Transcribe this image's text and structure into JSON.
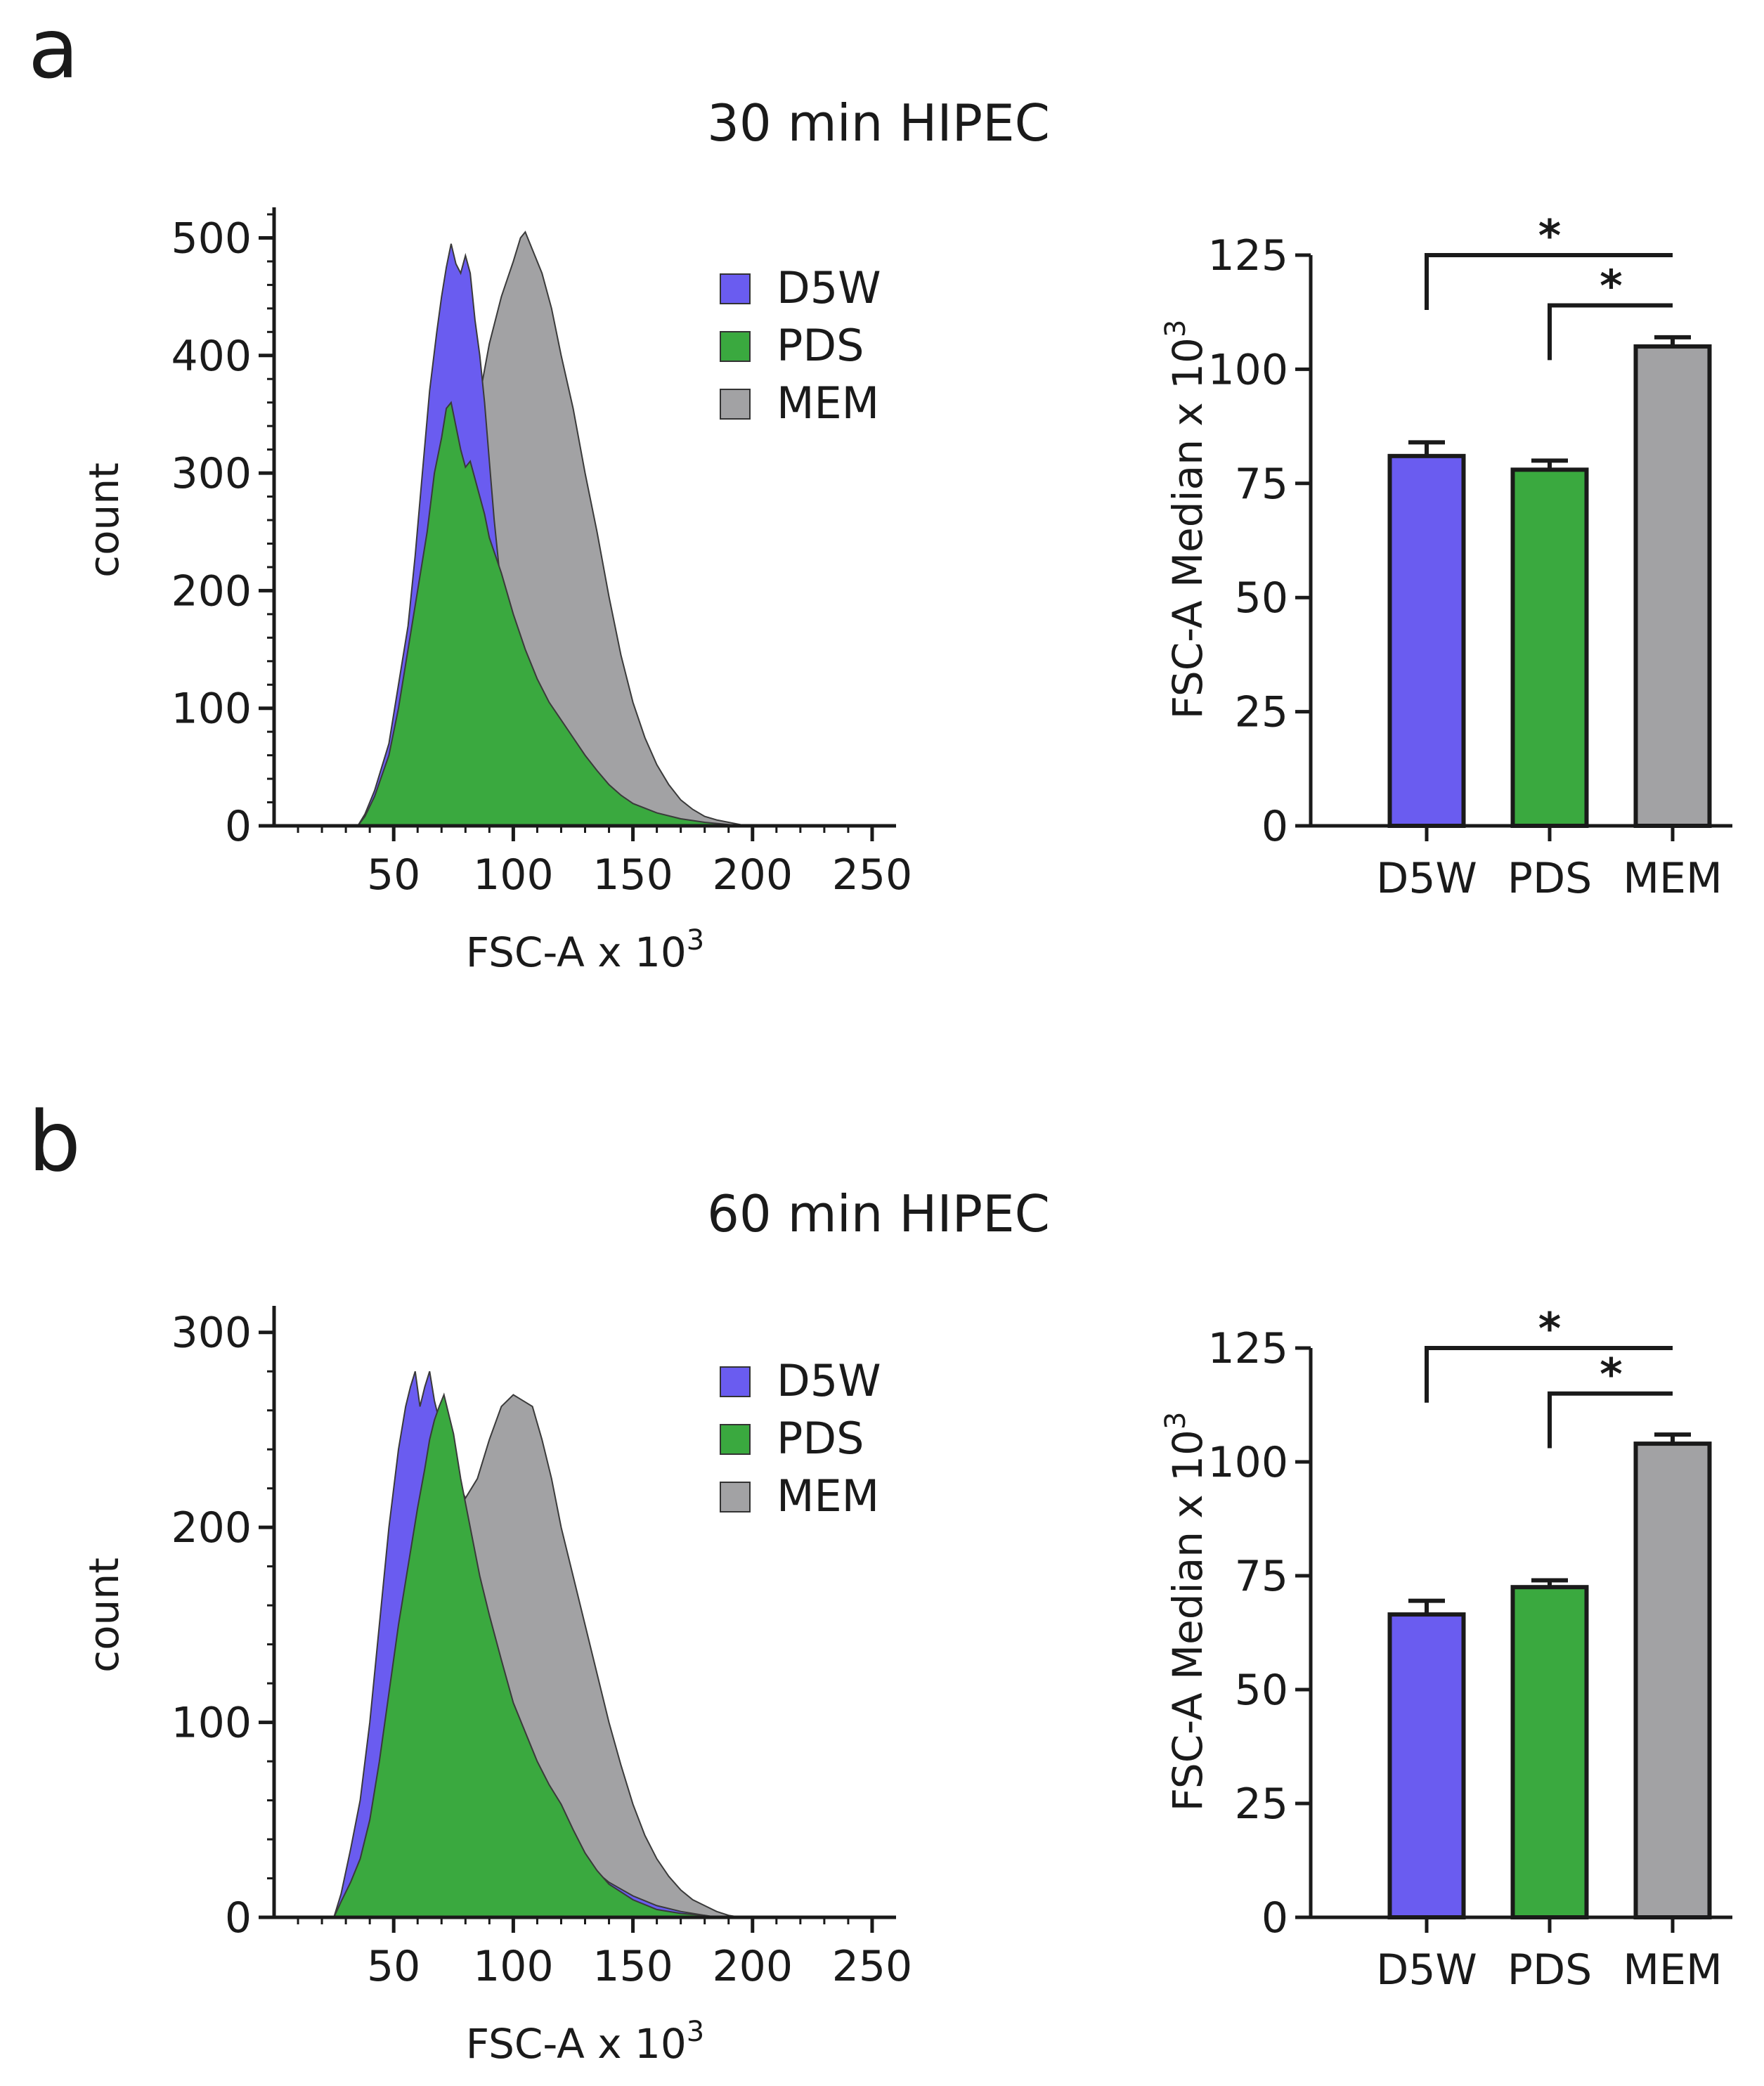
{
  "colors": {
    "D5W": "#6a5cf0",
    "PDS": "#3aa93f",
    "MEM": "#a2a2a4",
    "axis": "#1a1a1a"
  },
  "panels": [
    {
      "letter": "a",
      "title": "30 min HIPEC",
      "histogram": {
        "type": "area",
        "xlabel": "FSC-A x 10",
        "xlabel_sup": "3",
        "ylabel": "count",
        "xlim": [
          0,
          260
        ],
        "ylim": [
          0,
          520
        ],
        "xticks": [
          50,
          100,
          150,
          200,
          250
        ],
        "yticks": [
          0,
          100,
          200,
          300,
          400,
          500
        ],
        "legend": [
          "D5W",
          "PDS",
          "MEM"
        ],
        "series": [
          {
            "name": "MEM",
            "points": [
              [
                35,
                0
              ],
              [
                38,
                5
              ],
              [
                42,
                20
              ],
              [
                48,
                48
              ],
              [
                55,
                90
              ],
              [
                60,
                140
              ],
              [
                64,
                200
              ],
              [
                68,
                260
              ],
              [
                72,
                310
              ],
              [
                76,
                340
              ],
              [
                80,
                330
              ],
              [
                85,
                355
              ],
              [
                90,
                410
              ],
              [
                95,
                450
              ],
              [
                100,
                480
              ],
              [
                103,
                500
              ],
              [
                105,
                505
              ],
              [
                108,
                490
              ],
              [
                112,
                470
              ],
              [
                116,
                440
              ],
              [
                120,
                400
              ],
              [
                125,
                355
              ],
              [
                130,
                300
              ],
              [
                135,
                250
              ],
              [
                140,
                195
              ],
              [
                145,
                145
              ],
              [
                150,
                105
              ],
              [
                155,
                75
              ],
              [
                160,
                52
              ],
              [
                165,
                35
              ],
              [
                170,
                22
              ],
              [
                175,
                14
              ],
              [
                180,
                8
              ],
              [
                185,
                5
              ],
              [
                190,
                3
              ],
              [
                195,
                1
              ],
              [
                198,
                0
              ]
            ]
          },
          {
            "name": "D5W",
            "points": [
              [
                35,
                0
              ],
              [
                38,
                10
              ],
              [
                42,
                30
              ],
              [
                48,
                70
              ],
              [
                52,
                120
              ],
              [
                56,
                170
              ],
              [
                59,
                230
              ],
              [
                62,
                300
              ],
              [
                65,
                370
              ],
              [
                68,
                420
              ],
              [
                70,
                450
              ],
              [
                72,
                475
              ],
              [
                74,
                495
              ],
              [
                76,
                478
              ],
              [
                78,
                470
              ],
              [
                80,
                485
              ],
              [
                82,
                470
              ],
              [
                84,
                430
              ],
              [
                86,
                400
              ],
              [
                88,
                360
              ],
              [
                90,
                310
              ],
              [
                92,
                260
              ],
              [
                94,
                220
              ],
              [
                96,
                190
              ],
              [
                98,
                160
              ],
              [
                100,
                140
              ],
              [
                105,
                110
              ],
              [
                110,
                88
              ],
              [
                120,
                65
              ],
              [
                130,
                45
              ],
              [
                140,
                30
              ],
              [
                150,
                17
              ],
              [
                160,
                10
              ],
              [
                170,
                5
              ],
              [
                180,
                2
              ],
              [
                190,
                0
              ]
            ]
          },
          {
            "name": "PDS",
            "points": [
              [
                35,
                0
              ],
              [
                38,
                8
              ],
              [
                42,
                25
              ],
              [
                48,
                60
              ],
              [
                52,
                100
              ],
              [
                56,
                150
              ],
              [
                60,
                200
              ],
              [
                64,
                250
              ],
              [
                67,
                300
              ],
              [
                70,
                330
              ],
              [
                72,
                355
              ],
              [
                74,
                360
              ],
              [
                76,
                340
              ],
              [
                78,
                320
              ],
              [
                80,
                305
              ],
              [
                82,
                310
              ],
              [
                84,
                295
              ],
              [
                86,
                280
              ],
              [
                88,
                265
              ],
              [
                90,
                245
              ],
              [
                95,
                215
              ],
              [
                100,
                180
              ],
              [
                105,
                150
              ],
              [
                110,
                125
              ],
              [
                115,
                105
              ],
              [
                120,
                90
              ],
              [
                125,
                75
              ],
              [
                130,
                60
              ],
              [
                135,
                47
              ],
              [
                140,
                35
              ],
              [
                145,
                26
              ],
              [
                150,
                19
              ],
              [
                160,
                11
              ],
              [
                170,
                6
              ],
              [
                180,
                3
              ],
              [
                190,
                1
              ],
              [
                195,
                0
              ]
            ]
          }
        ]
      },
      "bars": {
        "type": "bar",
        "ylabel": "FSC-A Median x 10",
        "ylabel_sup": "3",
        "ylim": [
          0,
          125
        ],
        "yticks": [
          0,
          25,
          50,
          75,
          100,
          125
        ],
        "categories": [
          "D5W",
          "PDS",
          "MEM"
        ],
        "values": [
          81,
          78,
          105
        ],
        "errors": [
          3,
          2,
          2
        ],
        "significance": [
          {
            "from": 0,
            "to": 2,
            "y": 125,
            "label": "*"
          },
          {
            "from": 1,
            "to": 2,
            "y": 114,
            "label": "*"
          }
        ]
      }
    },
    {
      "letter": "b",
      "title": "60 min HIPEC",
      "histogram": {
        "type": "area",
        "xlabel": "FSC-A x 10",
        "xlabel_sup": "3",
        "ylabel": "count",
        "xlim": [
          0,
          260
        ],
        "ylim": [
          0,
          310
        ],
        "xticks": [
          50,
          100,
          150,
          200,
          250
        ],
        "yticks": [
          0,
          100,
          200,
          300
        ],
        "legend": [
          "D5W",
          "PDS",
          "MEM"
        ],
        "series": [
          {
            "name": "MEM",
            "points": [
              [
                25,
                0
              ],
              [
                28,
                10
              ],
              [
                32,
                25
              ],
              [
                38,
                50
              ],
              [
                44,
                85
              ],
              [
                50,
                130
              ],
              [
                55,
                170
              ],
              [
                60,
                205
              ],
              [
                64,
                240
              ],
              [
                68,
                250
              ],
              [
                72,
                245
              ],
              [
                76,
                225
              ],
              [
                80,
                215
              ],
              [
                85,
                225
              ],
              [
                90,
                245
              ],
              [
                95,
                262
              ],
              [
                100,
                268
              ],
              [
                104,
                265
              ],
              [
                108,
                262
              ],
              [
                112,
                245
              ],
              [
                116,
                225
              ],
              [
                120,
                200
              ],
              [
                125,
                175
              ],
              [
                130,
                150
              ],
              [
                135,
                125
              ],
              [
                140,
                100
              ],
              [
                145,
                78
              ],
              [
                150,
                58
              ],
              [
                155,
                42
              ],
              [
                160,
                30
              ],
              [
                165,
                21
              ],
              [
                170,
                14
              ],
              [
                175,
                9
              ],
              [
                180,
                6
              ],
              [
                185,
                3
              ],
              [
                190,
                1
              ],
              [
                195,
                0
              ]
            ]
          },
          {
            "name": "D5W",
            "points": [
              [
                25,
                0
              ],
              [
                28,
                12
              ],
              [
                32,
                35
              ],
              [
                36,
                60
              ],
              [
                40,
                100
              ],
              [
                44,
                150
              ],
              [
                48,
                200
              ],
              [
                52,
                240
              ],
              [
                55,
                262
              ],
              [
                57,
                272
              ],
              [
                59,
                280
              ],
              [
                61,
                262
              ],
              [
                63,
                272
              ],
              [
                65,
                280
              ],
              [
                67,
                265
              ],
              [
                69,
                255
              ],
              [
                71,
                248
              ],
              [
                73,
                230
              ],
              [
                75,
                210
              ],
              [
                78,
                185
              ],
              [
                82,
                155
              ],
              [
                86,
                130
              ],
              [
                90,
                110
              ],
              [
                95,
                92
              ],
              [
                100,
                78
              ],
              [
                110,
                58
              ],
              [
                120,
                42
              ],
              [
                130,
                28
              ],
              [
                140,
                18
              ],
              [
                150,
                11
              ],
              [
                160,
                6
              ],
              [
                170,
                3
              ],
              [
                180,
                1
              ],
              [
                185,
                0
              ]
            ]
          },
          {
            "name": "PDS",
            "points": [
              [
                25,
                0
              ],
              [
                28,
                8
              ],
              [
                32,
                18
              ],
              [
                36,
                30
              ],
              [
                40,
                50
              ],
              [
                44,
                80
              ],
              [
                48,
                115
              ],
              [
                52,
                150
              ],
              [
                56,
                180
              ],
              [
                60,
                210
              ],
              [
                63,
                230
              ],
              [
                65,
                245
              ],
              [
                67,
                255
              ],
              [
                69,
                262
              ],
              [
                71,
                268
              ],
              [
                73,
                258
              ],
              [
                75,
                248
              ],
              [
                78,
                225
              ],
              [
                82,
                200
              ],
              [
                86,
                175
              ],
              [
                90,
                155
              ],
              [
                95,
                132
              ],
              [
                100,
                110
              ],
              [
                105,
                95
              ],
              [
                110,
                80
              ],
              [
                115,
                68
              ],
              [
                120,
                58
              ],
              [
                125,
                45
              ],
              [
                130,
                33
              ],
              [
                135,
                24
              ],
              [
                140,
                17
              ],
              [
                150,
                9
              ],
              [
                160,
                4
              ],
              [
                170,
                2
              ],
              [
                180,
                1
              ],
              [
                185,
                0
              ]
            ]
          }
        ]
      },
      "bars": {
        "type": "bar",
        "ylabel": "FSC-A Median x 10",
        "ylabel_sup": "3",
        "ylim": [
          0,
          125
        ],
        "yticks": [
          0,
          25,
          50,
          75,
          100,
          125
        ],
        "categories": [
          "D5W",
          "PDS",
          "MEM"
        ],
        "values": [
          66.5,
          72.5,
          104
        ],
        "errors": [
          3,
          1.5,
          2
        ],
        "significance": [
          {
            "from": 0,
            "to": 2,
            "y": 125,
            "label": "*"
          },
          {
            "from": 1,
            "to": 2,
            "y": 115,
            "label": "*"
          }
        ]
      }
    }
  ]
}
